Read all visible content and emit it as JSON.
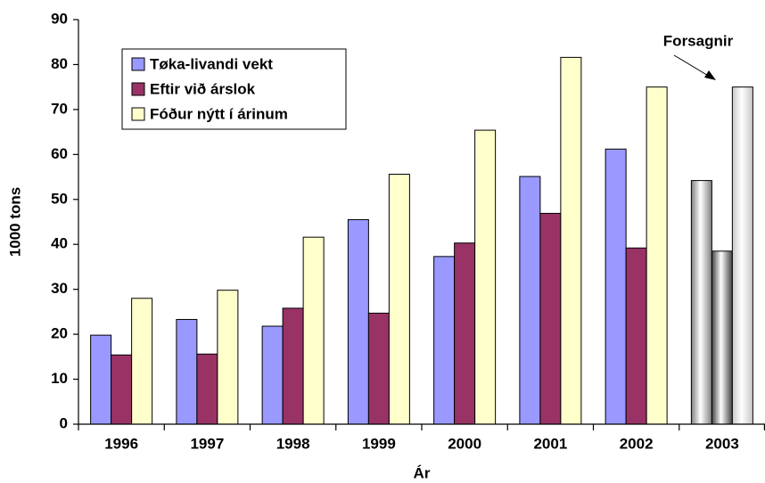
{
  "chart_data": {
    "type": "bar",
    "x_label": "Ár",
    "y_label": "1000 tons",
    "categories": [
      "1996",
      "1997",
      "1998",
      "1999",
      "2000",
      "2001",
      "2002",
      "2003"
    ],
    "series": [
      {
        "name": "Tøka-livandi vekt",
        "color": "#9999ff",
        "values": [
          19.8,
          23.3,
          21.8,
          45.5,
          37.3,
          55.1,
          61.2,
          54.2
        ]
      },
      {
        "name": "Eftir við árslok",
        "color": "#993366",
        "values": [
          15.4,
          15.6,
          25.8,
          24.7,
          40.3,
          46.9,
          39.2,
          38.5
        ]
      },
      {
        "name": "Fóður nýtt í árinum",
        "color": "#ffffcc",
        "values": [
          28,
          29.8,
          41.6,
          55.6,
          65.4,
          81.6,
          75,
          75
        ]
      }
    ],
    "forecast": {
      "index": 7,
      "text": "Forsagnir",
      "colors": [
        "#808080",
        "#404040",
        "#c8c8c8"
      ]
    },
    "ylim": [
      0,
      90
    ],
    "yticks": [
      0,
      10,
      20,
      30,
      40,
      50,
      60,
      70,
      80,
      90
    ],
    "legend": "upper left",
    "grid": false
  }
}
